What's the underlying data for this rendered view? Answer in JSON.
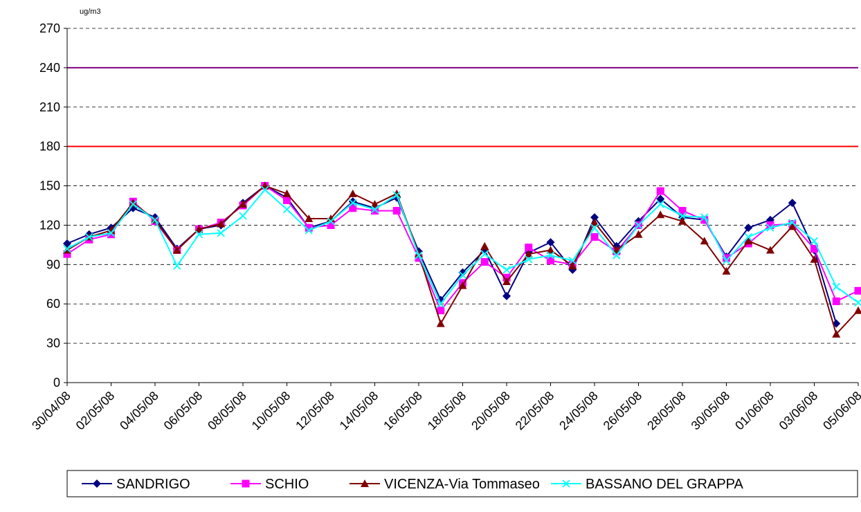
{
  "chart_data": {
    "type": "line",
    "unit_label": "ug/m3",
    "categories": [
      "30/04/08",
      null,
      "02/05/08",
      null,
      "04/05/08",
      null,
      "06/05/08",
      null,
      "08/05/08",
      null,
      "10/05/08",
      null,
      "12/05/08",
      null,
      "14/05/08",
      null,
      "16/05/08",
      null,
      "18/05/08",
      null,
      "20/05/08",
      null,
      "22/05/08",
      null,
      "24/05/08",
      null,
      "26/05/08",
      null,
      "28/05/08",
      null,
      "30/05/08",
      null,
      "01/06/08",
      null,
      "03/06/08",
      null,
      "05/06/08"
    ],
    "series": [
      {
        "name": "SANDRIGO",
        "color": "#000080",
        "marker": "diamond",
        "values": [
          106,
          113,
          118,
          133,
          126,
          102,
          117,
          120,
          137,
          150,
          141,
          118,
          123,
          138,
          133,
          141,
          100,
          63,
          84,
          101,
          66,
          99,
          107,
          86,
          126,
          104,
          123,
          140,
          126,
          124,
          96,
          118,
          124,
          137,
          101,
          45,
          null
        ]
      },
      {
        "name": "SCHIO",
        "color": "#ff00ff",
        "marker": "square",
        "values": [
          98,
          109,
          113,
          138,
          123,
          101,
          117,
          122,
          135,
          150,
          139,
          118,
          120,
          133,
          131,
          131,
          95,
          55,
          76,
          92,
          80,
          103,
          93,
          90,
          111,
          100,
          120,
          146,
          131,
          124,
          95,
          106,
          120,
          121,
          102,
          62,
          70
        ]
      },
      {
        "name": "VICENZA-Via Tommaseo",
        "color": "#800000",
        "marker": "triangle",
        "values": [
          101,
          111,
          116,
          137,
          124,
          101,
          117,
          121,
          136,
          150,
          144,
          125,
          125,
          144,
          136,
          144,
          98,
          45,
          74,
          104,
          77,
          98,
          101,
          89,
          122,
          101,
          113,
          128,
          123,
          108,
          85,
          108,
          101,
          119,
          94,
          37,
          55
        ]
      },
      {
        "name": "BASSANO DEL GRAPPA",
        "color": "#00ffff",
        "marker": "x",
        "values": [
          102,
          111,
          114,
          136,
          124,
          89,
          113,
          114,
          127,
          147,
          132,
          116,
          123,
          137,
          132,
          143,
          97,
          60,
          82,
          98,
          86,
          94,
          97,
          93,
          118,
          97,
          120,
          136,
          127,
          126,
          93,
          111,
          118,
          122,
          108,
          73,
          61
        ]
      }
    ],
    "reference_lines": [
      {
        "value": 180,
        "color": "#ff0000"
      },
      {
        "value": 240,
        "color": "#800080"
      }
    ],
    "ylim": [
      0,
      270
    ],
    "yticks": [
      0,
      30,
      60,
      90,
      120,
      150,
      180,
      210,
      240,
      270
    ],
    "grid": true,
    "legend": "bottom"
  }
}
